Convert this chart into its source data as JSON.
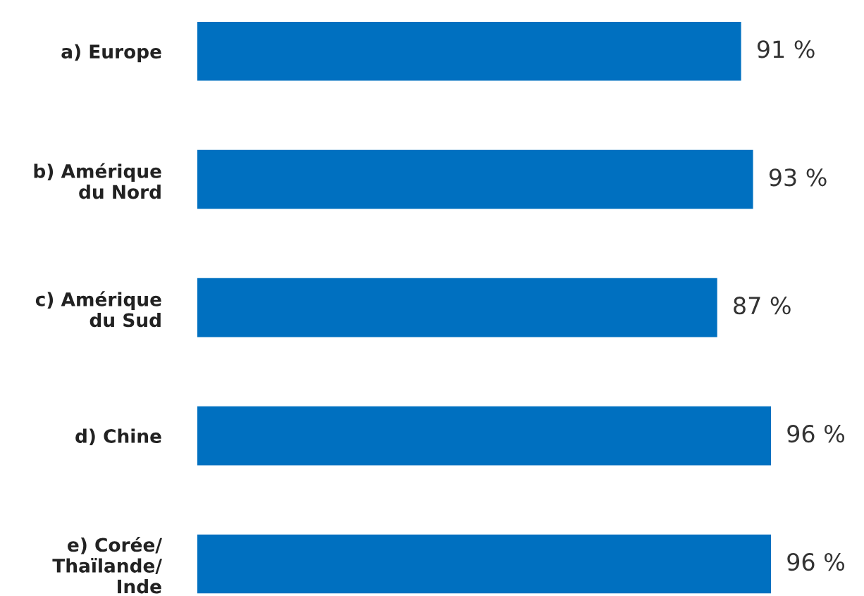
{
  "chart_data": {
    "type": "bar",
    "orientation": "horizontal",
    "categories": [
      "a) Europe",
      "b) Amérique\ndu Nord",
      "c) Amérique\ndu Sud",
      "d) Chine",
      "e) Corée/\nThaïlande/\nInde"
    ],
    "values": [
      91,
      93,
      87,
      96,
      96
    ],
    "value_labels": [
      "91 %",
      "93 %",
      "87 %",
      "96 %",
      "96 %"
    ],
    "color": "#0070c0",
    "tick_labels": "y",
    "grid": false,
    "legend": false
  }
}
